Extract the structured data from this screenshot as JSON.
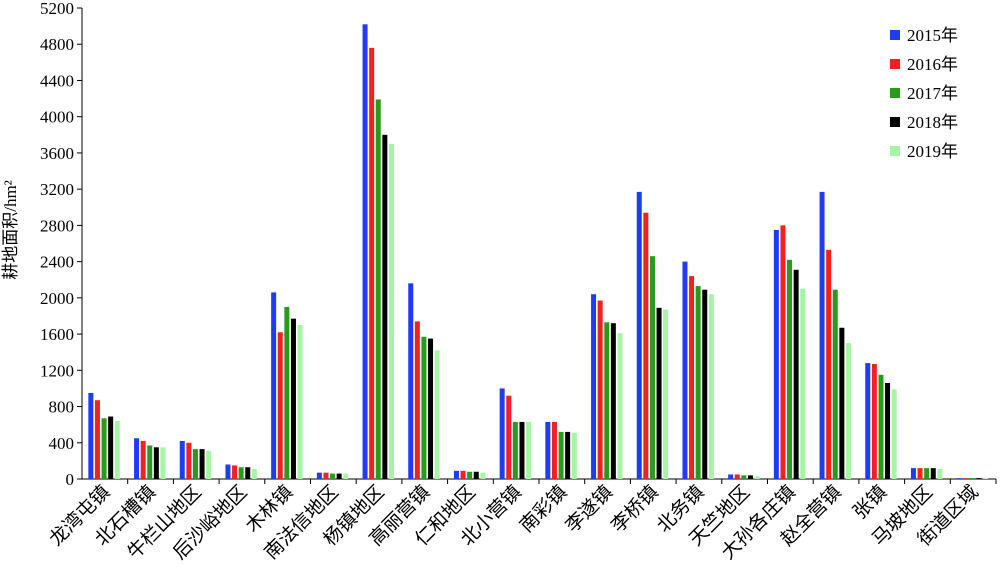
{
  "chart_data": {
    "type": "bar",
    "y_label": "耕地面积/hm²",
    "categories": [
      "龙湾屯镇",
      "北石槽镇",
      "牛栏山地区",
      "后沙峪地区",
      "木林镇",
      "南法信地区",
      "杨镇地区",
      "高丽营镇",
      "仁和地区",
      "北小营镇",
      "南彩镇",
      "李遂镇",
      "李桥镇",
      "北务镇",
      "天竺地区",
      "大孙各庄镇",
      "赵全营镇",
      "张镇",
      "马坡地区",
      "街道区域"
    ],
    "series": [
      {
        "name": "2015年",
        "color": "#1f3cf5",
        "values": [
          950,
          450,
          420,
          160,
          2060,
          70,
          5020,
          2160,
          90,
          1000,
          630,
          2040,
          3170,
          2400,
          50,
          2750,
          3170,
          1280,
          120,
          10
        ]
      },
      {
        "name": "2016年",
        "color": "#f51f1f",
        "values": [
          870,
          420,
          400,
          150,
          1620,
          70,
          4760,
          1740,
          90,
          920,
          630,
          1970,
          2940,
          2240,
          50,
          2800,
          2530,
          1270,
          120,
          10
        ]
      },
      {
        "name": "2017年",
        "color": "#2a9a1a",
        "values": [
          670,
          370,
          330,
          130,
          1900,
          60,
          4190,
          1570,
          80,
          630,
          520,
          1730,
          2460,
          2130,
          40,
          2420,
          2090,
          1150,
          120,
          10
        ]
      },
      {
        "name": "2018年",
        "color": "#000000",
        "values": [
          690,
          350,
          330,
          130,
          1770,
          60,
          3800,
          1550,
          80,
          630,
          520,
          1720,
          1890,
          2090,
          40,
          2310,
          1670,
          1060,
          120,
          10
        ]
      },
      {
        "name": "2019年",
        "color": "#a4f5a4",
        "values": [
          640,
          350,
          310,
          110,
          1700,
          60,
          3700,
          1420,
          70,
          630,
          510,
          1610,
          1870,
          2040,
          30,
          2100,
          1500,
          990,
          110,
          10
        ]
      }
    ],
    "ylim": [
      0,
      5200
    ],
    "yticks": [
      0,
      400,
      800,
      1200,
      1600,
      2000,
      2400,
      2800,
      3200,
      3600,
      4000,
      4400,
      4800,
      5200
    ],
    "legend": "top-right"
  }
}
